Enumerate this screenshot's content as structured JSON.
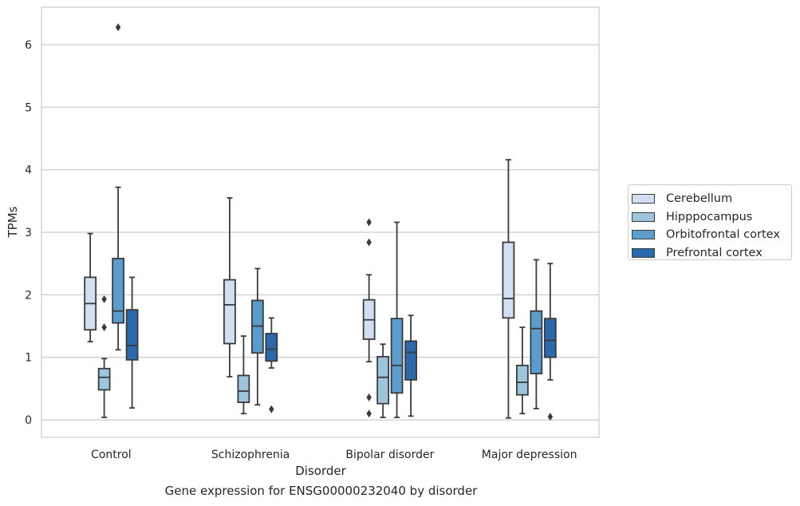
{
  "chart_data": {
    "type": "box",
    "caption": "Gene expression for ENSG00000232040 by disorder",
    "xlabel": "Disorder",
    "ylabel": "TPMs",
    "ylim": [
      -0.28,
      6.6
    ],
    "yticks": [
      0,
      1,
      2,
      3,
      4,
      5,
      6
    ],
    "grid": "horizontal",
    "legend_position": "right",
    "categories": [
      "Control",
      "Schizophrenia",
      "Bipolar disorder",
      "Major depression"
    ],
    "series": [
      {
        "name": "Cerebellum",
        "color": "#d1e0f1",
        "boxes": [
          {
            "whisker_low": 1.25,
            "q1": 1.44,
            "median": 1.86,
            "q3": 2.28,
            "whisker_high": 2.98,
            "outliers": []
          },
          {
            "whisker_low": 0.69,
            "q1": 1.22,
            "median": 1.84,
            "q3": 2.24,
            "whisker_high": 3.55,
            "outliers": []
          },
          {
            "whisker_low": 0.93,
            "q1": 1.29,
            "median": 1.6,
            "q3": 1.92,
            "whisker_high": 2.32,
            "outliers": [
              3.16,
              2.84,
              0.36,
              0.1
            ]
          },
          {
            "whisker_low": 0.03,
            "q1": 1.63,
            "median": 1.94,
            "q3": 2.84,
            "whisker_high": 4.16,
            "outliers": []
          }
        ]
      },
      {
        "name": "Hipppocampus",
        "color": "#9dc5de",
        "boxes": [
          {
            "whisker_low": 0.04,
            "q1": 0.48,
            "median": 0.68,
            "q3": 0.82,
            "whisker_high": 0.98,
            "outliers": [
              1.93,
              1.48
            ]
          },
          {
            "whisker_low": 0.1,
            "q1": 0.28,
            "median": 0.46,
            "q3": 0.71,
            "whisker_high": 1.34,
            "outliers": []
          },
          {
            "whisker_low": 0.04,
            "q1": 0.26,
            "median": 0.68,
            "q3": 1.01,
            "whisker_high": 1.21,
            "outliers": []
          },
          {
            "whisker_low": 0.1,
            "q1": 0.4,
            "median": 0.6,
            "q3": 0.87,
            "whisker_high": 1.48,
            "outliers": []
          }
        ]
      },
      {
        "name": "Orbitofrontal cortex",
        "color": "#5a9ccb",
        "boxes": [
          {
            "whisker_low": 1.12,
            "q1": 1.55,
            "median": 1.74,
            "q3": 2.58,
            "whisker_high": 3.72,
            "outliers": [
              6.28
            ]
          },
          {
            "whisker_low": 0.24,
            "q1": 1.07,
            "median": 1.5,
            "q3": 1.91,
            "whisker_high": 2.42,
            "outliers": []
          },
          {
            "whisker_low": 0.04,
            "q1": 0.43,
            "median": 0.87,
            "q3": 1.62,
            "whisker_high": 3.16,
            "outliers": []
          },
          {
            "whisker_low": 0.18,
            "q1": 0.74,
            "median": 1.46,
            "q3": 1.74,
            "whisker_high": 2.56,
            "outliers": []
          }
        ]
      },
      {
        "name": "Prefrontal cortex",
        "color": "#2a6aac",
        "boxes": [
          {
            "whisker_low": 0.19,
            "q1": 0.96,
            "median": 1.19,
            "q3": 1.76,
            "whisker_high": 2.28,
            "outliers": []
          },
          {
            "whisker_low": 0.83,
            "q1": 0.94,
            "median": 1.13,
            "q3": 1.38,
            "whisker_high": 1.63,
            "outliers": [
              0.17
            ]
          },
          {
            "whisker_low": 0.06,
            "q1": 0.64,
            "median": 1.08,
            "q3": 1.26,
            "whisker_high": 1.67,
            "outliers": []
          },
          {
            "whisker_low": 0.64,
            "q1": 1.0,
            "median": 1.27,
            "q3": 1.62,
            "whisker_high": 2.5,
            "outliers": [
              0.05
            ]
          }
        ]
      }
    ]
  }
}
